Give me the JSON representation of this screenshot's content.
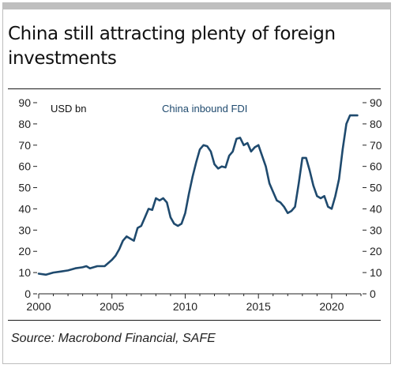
{
  "title": "China still attracting plenty of foreign investments",
  "source": "Source: Macrobond Financial, SAFE",
  "chart_data": {
    "type": "line",
    "title": "",
    "ylabel": "USD bn",
    "xlim": [
      2000,
      2022
    ],
    "ylim": [
      0,
      90
    ],
    "y_ticks": [
      0,
      10,
      20,
      30,
      40,
      50,
      60,
      70,
      80,
      90
    ],
    "x_ticks": [
      2000,
      2005,
      2010,
      2015,
      2020
    ],
    "y_axis_sides": [
      "left",
      "right"
    ],
    "grid": false,
    "line_color": "#1f4a6e",
    "series": [
      {
        "name": "China inbound FDI",
        "x": [
          2000.0,
          2000.5,
          2001.0,
          2001.5,
          2002.0,
          2002.5,
          2003.0,
          2003.25,
          2003.5,
          2003.75,
          2004.0,
          2004.5,
          2005.0,
          2005.25,
          2005.5,
          2005.75,
          2006.0,
          2006.25,
          2006.5,
          2006.75,
          2007.0,
          2007.25,
          2007.5,
          2007.75,
          2008.0,
          2008.25,
          2008.5,
          2008.75,
          2009.0,
          2009.25,
          2009.5,
          2009.75,
          2010.0,
          2010.25,
          2010.5,
          2010.75,
          2011.0,
          2011.25,
          2011.5,
          2011.75,
          2012.0,
          2012.25,
          2012.5,
          2012.75,
          2013.0,
          2013.25,
          2013.5,
          2013.75,
          2014.0,
          2014.25,
          2014.5,
          2014.75,
          2015.0,
          2015.25,
          2015.5,
          2015.75,
          2016.0,
          2016.25,
          2016.5,
          2016.75,
          2017.0,
          2017.25,
          2017.5,
          2017.75,
          2018.0,
          2018.25,
          2018.5,
          2018.75,
          2019.0,
          2019.25,
          2019.5,
          2019.75,
          2020.0,
          2020.25,
          2020.5,
          2020.75,
          2021.0,
          2021.25,
          2021.5,
          2021.75
        ],
        "values": [
          9.5,
          9.0,
          10.0,
          10.5,
          11.0,
          12.0,
          12.5,
          13.0,
          12.0,
          12.5,
          13.0,
          13.0,
          16.0,
          18.0,
          21.0,
          25.0,
          27.0,
          26.0,
          25.0,
          31.0,
          32.0,
          36.0,
          40.0,
          39.5,
          45.0,
          44.0,
          45.0,
          43.0,
          36.0,
          33.0,
          32.0,
          33.0,
          38.0,
          47.0,
          55.0,
          62.0,
          68.0,
          70.0,
          69.5,
          67.0,
          61.0,
          59.0,
          60.0,
          59.5,
          65.0,
          67.0,
          73.0,
          73.5,
          70.0,
          71.0,
          67.0,
          69.0,
          70.0,
          65.0,
          60.0,
          52.0,
          48.0,
          44.0,
          43.0,
          41.0,
          38.0,
          39.0,
          41.0,
          52.0,
          64.0,
          64.0,
          58.0,
          51.0,
          46.0,
          45.0,
          46.0,
          41.0,
          40.0,
          46.0,
          54.0,
          68.0,
          80.0,
          84.0,
          84.0,
          84.0
        ]
      }
    ]
  }
}
